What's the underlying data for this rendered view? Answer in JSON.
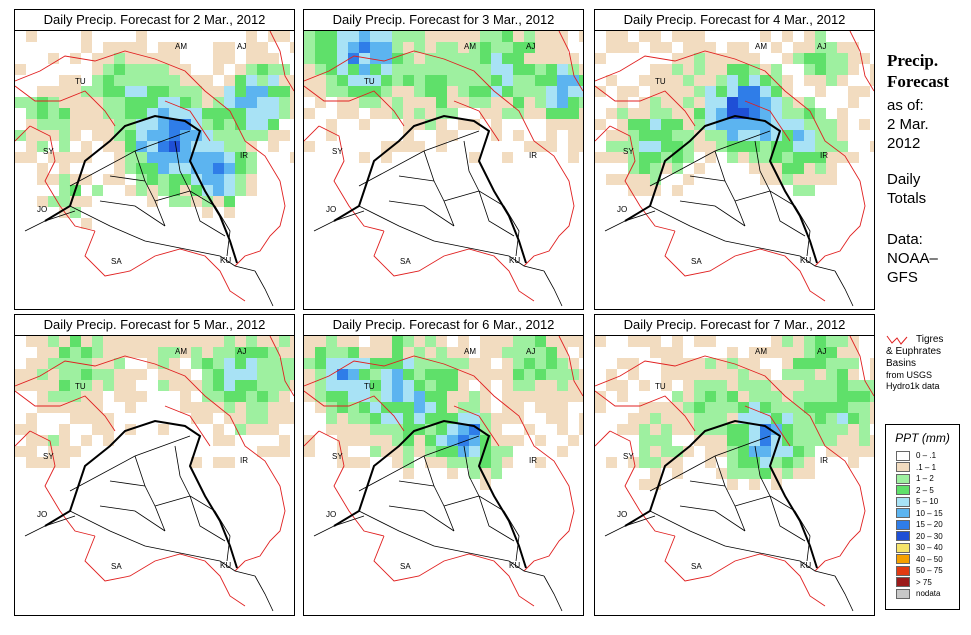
{
  "panels": [
    {
      "title": "Daily Precip. Forecast for  2 Mar., 2012",
      "date": "2 Mar. 2012"
    },
    {
      "title": "Daily Precip. Forecast for  3 Mar., 2012",
      "date": "3 Mar. 2012"
    },
    {
      "title": "Daily Precip. Forecast for  4 Mar., 2012",
      "date": "4 Mar. 2012"
    },
    {
      "title": "Daily Precip. Forecast for  5 Mar., 2012",
      "date": "5 Mar. 2012"
    },
    {
      "title": "Daily Precip. Forecast for  6 Mar., 2012",
      "date": "6 Mar. 2012"
    },
    {
      "title": "Daily Precip. Forecast for  7 Mar., 2012",
      "date": "7 Mar. 2012"
    }
  ],
  "country_labels": [
    "AM",
    "AJ",
    "TU",
    "SY",
    "IR",
    "JO",
    "SA",
    "KU"
  ],
  "side_info": {
    "title_line1": "Precip.",
    "title_line2": "Forecast",
    "asof_label": "as of:",
    "asof_date_line1": "2 Mar.",
    "asof_date_line2": "2012",
    "totals_line1": "Daily",
    "totals_line2": "Totals",
    "data_line1": "Data:",
    "data_line2": "NOAA–",
    "data_line3": "GFS"
  },
  "basin_legend": {
    "line1": "Tigres",
    "line2": "& Euphrates",
    "line3": "Basins",
    "line4": "from USGS",
    "line5": "Hydro1k data"
  },
  "ppt_legend": {
    "title": "PPT (mm)",
    "classes": [
      {
        "label": "0 – .1",
        "color": "#ffffff"
      },
      {
        "label": ".1 – 1",
        "color": "#f2dcc0"
      },
      {
        "label": "1 – 2",
        "color": "#9ef0a0"
      },
      {
        "label": "2 – 5",
        "color": "#5fe06a"
      },
      {
        "label": "5 – 10",
        "color": "#a8e2f5"
      },
      {
        "label": "10 – 15",
        "color": "#5cb4f0"
      },
      {
        "label": "15 – 20",
        "color": "#2f7de8"
      },
      {
        "label": "20 – 30",
        "color": "#1f4fd6"
      },
      {
        "label": "30 – 40",
        "color": "#f6e46a"
      },
      {
        "label": "40 – 50",
        "color": "#f5a000"
      },
      {
        "label": "50 – 75",
        "color": "#e23a12"
      },
      {
        "label": "> 75",
        "color": "#9b1a1a"
      },
      {
        "label": "nodata",
        "color": "#c8c8c8"
      }
    ]
  },
  "colors": {
    "basin_line": "#e02020",
    "border_line": "#000000"
  }
}
